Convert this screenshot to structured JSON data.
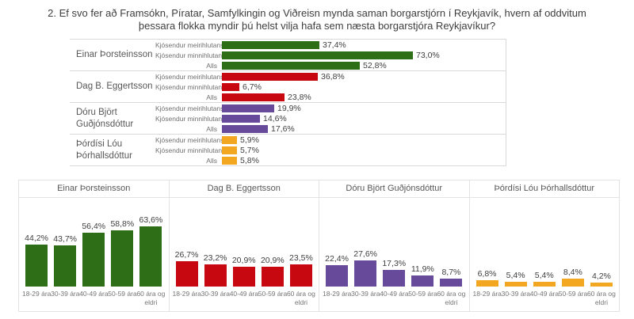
{
  "title": "2. Ef svo fer að Framsókn, Píratar, Samfylkingin og Viðreisn mynda saman borgarstjórn í Reykjavík, hvern af oddvitum þessara flokka myndir þú helst vilja hafa sem næsta borgarstjóra Reykjavíkur?",
  "colors": {
    "green": "#2d6e16",
    "red": "#c70810",
    "purple": "#684a9a",
    "orange": "#f3a620",
    "grid": "#d9d9d9",
    "panel_border": "#e3e3e3",
    "text_dark": "#404040",
    "text_medium": "#575757",
    "text_light": "#757575"
  },
  "chart_data": [
    {
      "type": "bar",
      "orientation": "horizontal",
      "name": "preference-by-voter-bloc",
      "xlim": [
        0,
        110
      ],
      "grid": false,
      "value_format": "percent-comma-decimal",
      "row_categories": [
        "Kjósendur meirihlutans",
        "Kjósendur minnihlutans",
        "Alls"
      ],
      "groups": [
        {
          "name": "Einar Þorsteinsson",
          "color_key": "green",
          "values": [
            37.4,
            73.0,
            52.8
          ],
          "labels": [
            "37,4%",
            "73,0%",
            "52,8%"
          ]
        },
        {
          "name": "Dag B. Eggertsson",
          "color_key": "red",
          "values": [
            36.8,
            6.7,
            23.8
          ],
          "labels": [
            "36,8%",
            "6,7%",
            "23,8%"
          ]
        },
        {
          "name": "Dóru Björt Guðjónsdóttur",
          "color_key": "purple",
          "values": [
            19.9,
            14.6,
            17.6
          ],
          "labels": [
            "19,9%",
            "14,6%",
            "17,6%"
          ]
        },
        {
          "name": "Þórdísi Lóu Þórhallsdóttur",
          "color_key": "orange",
          "values": [
            5.9,
            5.7,
            5.8
          ],
          "labels": [
            "5,9%",
            "5,7%",
            "5,8%"
          ]
        }
      ]
    },
    {
      "type": "bar",
      "orientation": "vertical",
      "name": "preference-by-age-group",
      "ylim": [
        0,
        95
      ],
      "grid": false,
      "value_format": "percent-comma-decimal",
      "categories": [
        "18-29 ára",
        "30-39 ára",
        "40-49 ára",
        "50-59 ára",
        "60 ára og eldri"
      ],
      "panels": [
        {
          "title": "Einar Þorsteinsson",
          "color_key": "green",
          "values": [
            44.2,
            43.7,
            56.4,
            58.8,
            63.6
          ],
          "labels": [
            "44,2%",
            "43,7%",
            "56,4%",
            "58,8%",
            "63,6%"
          ]
        },
        {
          "title": "Dag B. Eggertsson",
          "color_key": "red",
          "values": [
            26.7,
            23.2,
            20.9,
            20.9,
            23.5
          ],
          "labels": [
            "26,7%",
            "23,2%",
            "20,9%",
            "20,9%",
            "23,5%"
          ]
        },
        {
          "title": "Dóru Björt Guðjónsdóttur",
          "color_key": "purple",
          "values": [
            22.4,
            27.6,
            17.3,
            11.9,
            8.7
          ],
          "labels": [
            "22,4%",
            "27,6%",
            "17,3%",
            "11,9%",
            "8,7%"
          ]
        },
        {
          "title": "Þórdísi Lóu Þórhallsdóttur",
          "color_key": "orange",
          "values": [
            6.8,
            5.4,
            5.4,
            8.4,
            4.2
          ],
          "labels": [
            "6,8%",
            "5,4%",
            "5,4%",
            "8,4%",
            "4,2%"
          ]
        }
      ]
    }
  ]
}
